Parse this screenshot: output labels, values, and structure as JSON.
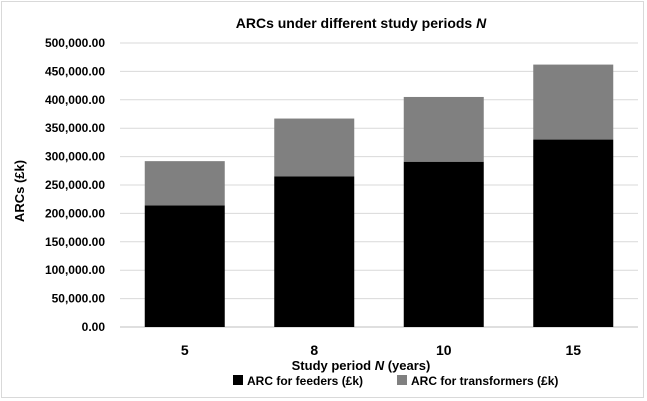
{
  "chart_data": {
    "type": "bar",
    "stacked": true,
    "title_main": "ARCs under different study periods ",
    "title_var": "N",
    "xlabel_pre": "Study period ",
    "xlabel_var": "N",
    "xlabel_post": " (years)",
    "ylabel": "ARCs (£k)",
    "categories": [
      "5",
      "8",
      "10",
      "15"
    ],
    "series": [
      {
        "name": "ARC for feeders (£k)",
        "color": "#000000",
        "values": [
          214000,
          265000,
          291000,
          330000
        ]
      },
      {
        "name": "ARC for transformers (£k)",
        "color": "#808080",
        "values": [
          78000,
          102000,
          114000,
          132000
        ]
      }
    ],
    "ylim": [
      0,
      500000
    ],
    "yticks": [
      "0.00",
      "50,000.00",
      "100,000.00",
      "150,000.00",
      "200,000.00",
      "250,000.00",
      "300,000.00",
      "350,000.00",
      "400,000.00",
      "450,000.00",
      "500,000.00"
    ],
    "grid": true,
    "legend_position": "bottom"
  }
}
